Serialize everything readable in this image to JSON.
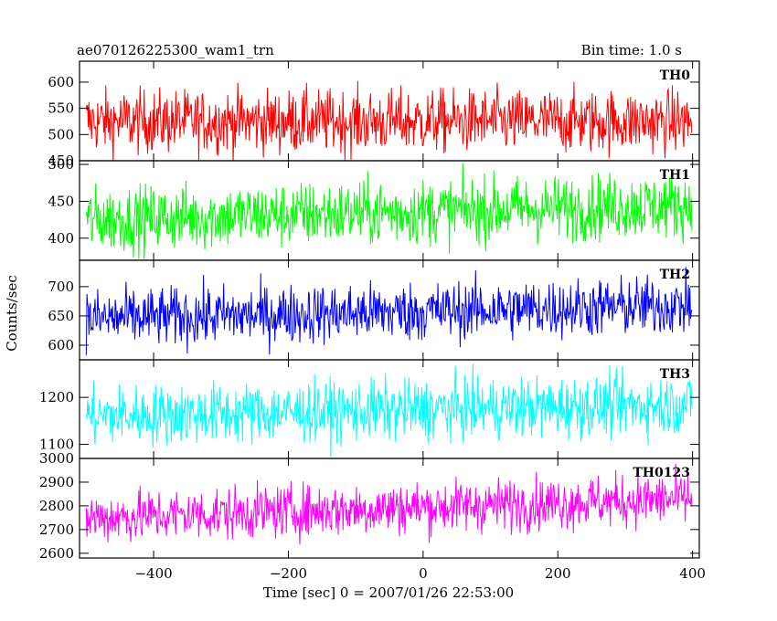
{
  "chart_data": {
    "type": "line",
    "title": "ae070126225300_wam1_trn",
    "bin_time": "Bin time: 1.0 s",
    "xlabel": "Time [sec] 0 = 2007/01/26 22:53:00",
    "ylabel": "Counts/sec",
    "xlim": [
      -510,
      410
    ],
    "x_range": [
      -500,
      399
    ],
    "xticks": [
      -400,
      -200,
      0,
      200,
      400
    ],
    "xtick_labels": [
      "−400",
      "−200",
      "0",
      "200",
      "400"
    ],
    "panels": [
      {
        "name": "TH0",
        "color": "#ff0000",
        "ylim": [
          450,
          640
        ],
        "yticks": [
          450,
          500,
          550,
          600
        ],
        "ytick_labels": [
          "450",
          "500",
          "550",
          "600"
        ],
        "mean_start": 525,
        "mean_end": 525,
        "noise": 30
      },
      {
        "name": "TH1",
        "color": "#00ff00",
        "ylim": [
          370,
          505
        ],
        "yticks": [
          400,
          450,
          500
        ],
        "ytick_labels": [
          "400",
          "450",
          "500"
        ],
        "mean_start": 425,
        "mean_end": 445,
        "noise": 22
      },
      {
        "name": "TH2",
        "color": "#0000ff",
        "ylim": [
          575,
          745
        ],
        "yticks": [
          600,
          650,
          700
        ],
        "ytick_labels": [
          "600",
          "650",
          "700"
        ],
        "mean_start": 645,
        "mean_end": 668,
        "noise": 25
      },
      {
        "name": "TH3",
        "color": "#00ffff",
        "ylim": [
          1070,
          1280
        ],
        "yticks": [
          1100,
          1200
        ],
        "ytick_labels": [
          "1100",
          "1200"
        ],
        "mean_start": 1160,
        "mean_end": 1185,
        "noise": 32
      },
      {
        "name": "TH0123",
        "color": "#ff00ff",
        "ylim": [
          2580,
          3000
        ],
        "yticks": [
          2600,
          2700,
          2800,
          2900,
          3000
        ],
        "ytick_labels": [
          "2600",
          "2700",
          "2800",
          "2900",
          "3000"
        ],
        "mean_start": 2750,
        "mean_end": 2830,
        "noise": 55
      }
    ]
  }
}
